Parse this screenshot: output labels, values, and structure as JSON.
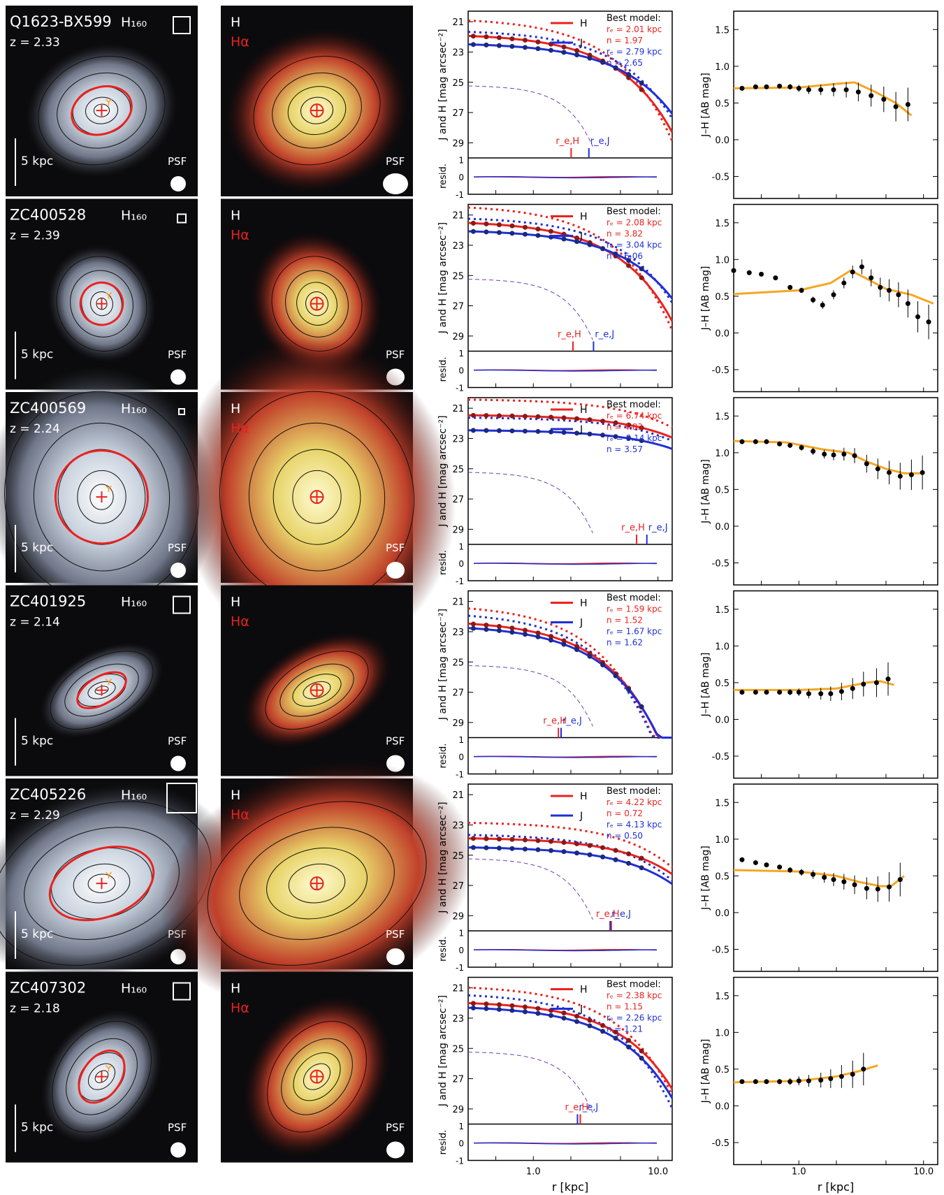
{
  "panel_labels": {
    "band": "H₁₆₀",
    "scale_bar": "5 kpc",
    "psf": "PSF",
    "h_label": "H",
    "ha_label": "Hα"
  },
  "profile_labels": {
    "legend_h": "H",
    "legend_j": "J",
    "best_model": "Best model:",
    "ylabel": "J and H [mag arcsec⁻²]",
    "resid_label": "resid.",
    "xlabel": "r [kpc]",
    "color_ylabel": "J–H [AB mag]",
    "re_h": "r_e,H",
    "re_j": "r_e,J"
  },
  "galaxies": [
    {
      "name": "Q1623-BX599",
      "z": "z = 2.33",
      "re_h": "rₑ = 2.01 kpc",
      "n_h": "n = 1.97",
      "re_j": "rₑ = 2.79 kpc",
      "n_j": "n = 2.65",
      "reH_val": 2.01,
      "reJ_val": 2.79,
      "h0": 22.0,
      "j0": 22.6,
      "spread": 0.9,
      "ell": [
        0.32,
        0.22,
        -20
      ],
      "color": [
        [
          0.35,
          0.7
        ],
        [
          0.45,
          0.72
        ],
        [
          0.55,
          0.72
        ],
        [
          0.7,
          0.73
        ],
        [
          0.85,
          0.72
        ],
        [
          1.0,
          0.7
        ],
        [
          1.2,
          0.68
        ],
        [
          1.5,
          0.68
        ],
        [
          1.9,
          0.68
        ],
        [
          2.4,
          0.68
        ],
        [
          3.0,
          0.65
        ],
        [
          3.8,
          0.6
        ],
        [
          4.8,
          0.55
        ],
        [
          6.0,
          0.45
        ],
        [
          7.5,
          0.48
        ]
      ],
      "color_model": [
        [
          0.3,
          0.7
        ],
        [
          1.0,
          0.71
        ],
        [
          2.0,
          0.76
        ],
        [
          2.8,
          0.78
        ],
        [
          4.0,
          0.66
        ],
        [
          6.0,
          0.5
        ],
        [
          8.0,
          0.33
        ]
      ]
    },
    {
      "name": "ZC400528",
      "z": "z = 2.39",
      "re_h": "rₑ = 2.08 kpc",
      "n_h": "n = 3.82",
      "re_j": "rₑ = 3.04 kpc",
      "n_j": "n = 6.06",
      "reH_val": 2.08,
      "reJ_val": 3.04,
      "h0": 21.6,
      "j0": 22.2,
      "spread": 0.95,
      "ell": [
        0.22,
        0.2,
        -25
      ],
      "color": [
        [
          0.3,
          0.85
        ],
        [
          0.4,
          0.82
        ],
        [
          0.5,
          0.8
        ],
        [
          0.65,
          0.75
        ],
        [
          0.85,
          0.62
        ],
        [
          1.05,
          0.58
        ],
        [
          1.3,
          0.45
        ],
        [
          1.55,
          0.38
        ],
        [
          1.9,
          0.52
        ],
        [
          2.3,
          0.68
        ],
        [
          2.7,
          0.83
        ],
        [
          3.2,
          0.9
        ],
        [
          3.8,
          0.75
        ],
        [
          4.5,
          0.62
        ],
        [
          5.3,
          0.58
        ],
        [
          6.3,
          0.52
        ],
        [
          7.5,
          0.4
        ],
        [
          9.0,
          0.22
        ],
        [
          11,
          0.15
        ]
      ],
      "color_model": [
        [
          0.3,
          0.53
        ],
        [
          1.0,
          0.58
        ],
        [
          1.8,
          0.68
        ],
        [
          2.6,
          0.85
        ],
        [
          3.4,
          0.75
        ],
        [
          5,
          0.6
        ],
        [
          8,
          0.52
        ],
        [
          12,
          0.4
        ]
      ]
    },
    {
      "name": "ZC400569",
      "z": "z = 2.24",
      "re_h": "rₑ = 6.74 kpc",
      "n_h": "n = 4.83",
      "re_j": "rₑ = 8.14 kpc",
      "n_j": "n = 3.57",
      "reH_val": 6.74,
      "reJ_val": 8.14,
      "h0": 21.6,
      "j0": 22.6,
      "spread": 0.7,
      "ell": [
        0.48,
        0.44,
        -10
      ],
      "color": [
        [
          0.35,
          1.15
        ],
        [
          0.45,
          1.15
        ],
        [
          0.55,
          1.15
        ],
        [
          0.7,
          1.12
        ],
        [
          0.85,
          1.1
        ],
        [
          1.05,
          1.07
        ],
        [
          1.3,
          1.02
        ],
        [
          1.6,
          0.98
        ],
        [
          1.9,
          0.97
        ],
        [
          2.3,
          0.98
        ],
        [
          2.8,
          0.96
        ],
        [
          3.5,
          0.85
        ],
        [
          4.3,
          0.78
        ],
        [
          5.3,
          0.73
        ],
        [
          6.5,
          0.68
        ],
        [
          8,
          0.7
        ],
        [
          9.8,
          0.73
        ]
      ],
      "color_model": [
        [
          0.3,
          1.16
        ],
        [
          0.8,
          1.14
        ],
        [
          1.5,
          1.05
        ],
        [
          2.5,
          1.0
        ],
        [
          3.5,
          0.88
        ],
        [
          5,
          0.78
        ],
        [
          7,
          0.72
        ],
        [
          10,
          0.72
        ]
      ]
    },
    {
      "name": "ZC401925",
      "z": "z = 2.14",
      "re_h": "rₑ = 1.59 kpc",
      "n_h": "n = 1.52",
      "re_j": "rₑ = 1.67 kpc",
      "n_j": "n = 1.62",
      "reH_val": 1.59,
      "reJ_val": 1.67,
      "h0": 22.5,
      "j0": 22.8,
      "spread": 1.1,
      "ell": [
        0.28,
        0.13,
        -30
      ],
      "color": [
        [
          0.35,
          0.37
        ],
        [
          0.45,
          0.37
        ],
        [
          0.55,
          0.37
        ],
        [
          0.7,
          0.37
        ],
        [
          0.85,
          0.37
        ],
        [
          1.0,
          0.37
        ],
        [
          1.2,
          0.35
        ],
        [
          1.5,
          0.35
        ],
        [
          1.8,
          0.35
        ],
        [
          2.2,
          0.38
        ],
        [
          2.7,
          0.42
        ],
        [
          3.3,
          0.48
        ],
        [
          4.2,
          0.5
        ],
        [
          5.2,
          0.55
        ]
      ],
      "color_model": [
        [
          0.3,
          0.4
        ],
        [
          1.0,
          0.4
        ],
        [
          2.0,
          0.42
        ],
        [
          3.5,
          0.5
        ],
        [
          4.5,
          0.52
        ],
        [
          5.8,
          0.47
        ]
      ]
    },
    {
      "name": "ZC405226",
      "z": "z = 2.29",
      "re_h": "rₑ = 4.22 kpc",
      "n_h": "n = 0.72",
      "re_j": "rₑ = 4.13 kpc",
      "n_j": "n = 0.50",
      "reH_val": 4.22,
      "reJ_val": 4.13,
      "h0": 24.0,
      "j0": 24.6,
      "spread": 0.7,
      "ell": [
        0.56,
        0.32,
        -20
      ],
      "color": [
        [
          0.35,
          0.72
        ],
        [
          0.45,
          0.68
        ],
        [
          0.55,
          0.65
        ],
        [
          0.7,
          0.62
        ],
        [
          0.85,
          0.58
        ],
        [
          1.05,
          0.55
        ],
        [
          1.3,
          0.52
        ],
        [
          1.6,
          0.48
        ],
        [
          1.9,
          0.45
        ],
        [
          2.3,
          0.42
        ],
        [
          2.8,
          0.38
        ],
        [
          3.5,
          0.33
        ],
        [
          4.3,
          0.32
        ],
        [
          5.3,
          0.35
        ],
        [
          6.5,
          0.45
        ]
      ],
      "color_model": [
        [
          0.3,
          0.58
        ],
        [
          1.0,
          0.56
        ],
        [
          2.0,
          0.5
        ],
        [
          3.0,
          0.42
        ],
        [
          4.5,
          0.36
        ],
        [
          5.5,
          0.36
        ],
        [
          7.0,
          0.5
        ]
      ]
    },
    {
      "name": "ZC407302",
      "z": "z = 2.18",
      "re_h": "rₑ = 2.38 kpc",
      "n_h": "n = 1.15",
      "re_j": "rₑ = 2.26 kpc",
      "n_j": "n = 1.21",
      "reH_val": 2.38,
      "reJ_val": 2.26,
      "h0": 22.1,
      "j0": 22.4,
      "spread": 0.95,
      "ell": [
        0.3,
        0.18,
        -55
      ],
      "color": [
        [
          0.35,
          0.33
        ],
        [
          0.45,
          0.33
        ],
        [
          0.55,
          0.33
        ],
        [
          0.7,
          0.33
        ],
        [
          0.85,
          0.33
        ],
        [
          1.0,
          0.34
        ],
        [
          1.2,
          0.34
        ],
        [
          1.5,
          0.35
        ],
        [
          1.8,
          0.37
        ],
        [
          2.2,
          0.4
        ],
        [
          2.7,
          0.43
        ],
        [
          3.3,
          0.5
        ]
      ],
      "color_model": [
        [
          0.3,
          0.32
        ],
        [
          1.0,
          0.34
        ],
        [
          2.0,
          0.4
        ],
        [
          3.0,
          0.47
        ],
        [
          4.3,
          0.55
        ]
      ]
    }
  ]
}
